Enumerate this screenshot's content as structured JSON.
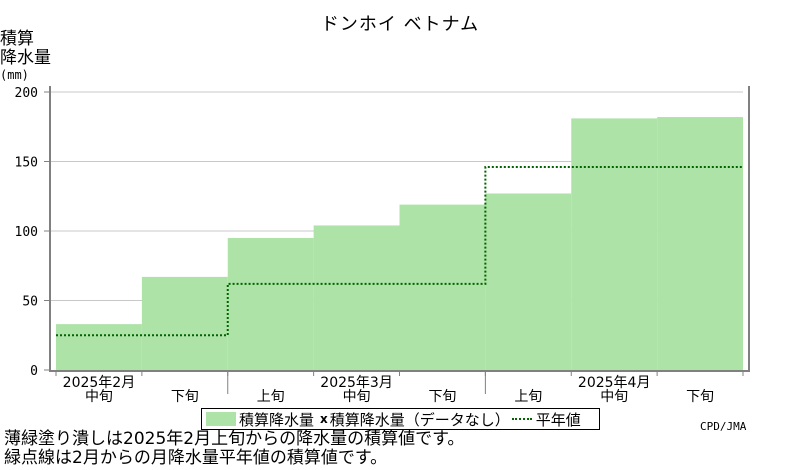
{
  "title": "ドンホイ ベトナム",
  "y_label_line1": "積算",
  "y_label_line2": "降水量",
  "y_unit": "(mm)",
  "source": "CPD/JMA",
  "legend": {
    "series1": "積算降水量",
    "mark": "x",
    "series2": "積算降水量（データなし）",
    "series3": "平年値"
  },
  "notes": {
    "line1": "薄緑塗り潰しは2025年2月上旬からの降水量の積算値です。",
    "line2": "緑点線は2月からの月降水量平年値の積算値です。"
  },
  "colors": {
    "fill": "#aee3a8",
    "normal_line": "#006400",
    "grid": "#c8c8c8",
    "axis": "#808080"
  },
  "chart_data": {
    "type": "area",
    "x_periods": [
      "中旬",
      "下旬",
      "上旬",
      "中旬",
      "下旬",
      "上旬",
      "中旬",
      "下旬"
    ],
    "month_labels": [
      {
        "label": "2025年2月",
        "center_period": 0.5
      },
      {
        "label": "2025年3月",
        "center_period": 3.5
      },
      {
        "label": "2025年4月",
        "center_period": 6.5
      }
    ],
    "period_labels": [
      {
        "label": "中旬",
        "pos": 0.5
      },
      {
        "label": "下旬",
        "pos": 1.5
      },
      {
        "label": "上旬",
        "pos": 2.5
      },
      {
        "label": "中旬",
        "pos": 3.5
      },
      {
        "label": "下旬",
        "pos": 4.5
      },
      {
        "label": "上旬",
        "pos": 5.5
      },
      {
        "label": "中旬",
        "pos": 6.5
      },
      {
        "label": "下旬",
        "pos": 7.5
      }
    ],
    "month_boundaries": [
      2,
      5
    ],
    "series": [
      {
        "name": "積算降水量",
        "values": [
          33,
          67,
          95,
          104,
          119,
          127,
          181,
          182
        ]
      },
      {
        "name": "平年値",
        "values": [
          25,
          25,
          62,
          62,
          62,
          146,
          146,
          146
        ]
      }
    ],
    "ylim": [
      0,
      200
    ],
    "yticks": [
      0,
      50,
      100,
      150,
      200
    ],
    "grid": true
  }
}
